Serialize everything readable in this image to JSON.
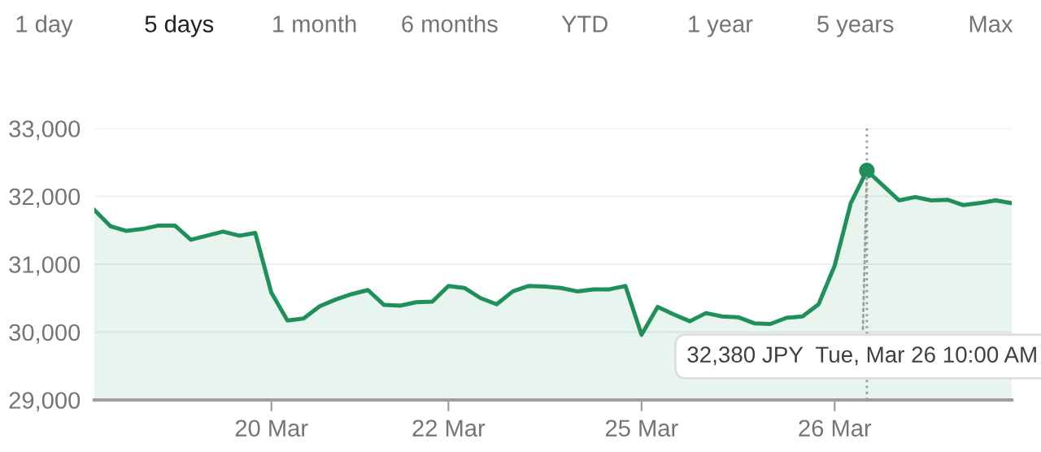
{
  "chart_data": {
    "type": "area",
    "color": "#1e9058",
    "categories": [
      null,
      null,
      null,
      null,
      null,
      null,
      null,
      null,
      null,
      null,
      null,
      "20 Mar",
      null,
      null,
      null,
      null,
      null,
      null,
      null,
      null,
      null,
      null,
      "22 Mar",
      null,
      null,
      null,
      null,
      null,
      null,
      null,
      null,
      null,
      null,
      null,
      "25 Mar",
      null,
      null,
      null,
      null,
      null,
      null,
      null,
      null,
      null,
      null,
      null,
      "26 Mar",
      null,
      null,
      null,
      null,
      null,
      null,
      null,
      null,
      null,
      null,
      null
    ],
    "values": [
      31800,
      31560,
      31490,
      31520,
      31570,
      31570,
      31360,
      31420,
      31480,
      31420,
      31460,
      30580,
      30170,
      30200,
      30380,
      30480,
      30560,
      30620,
      30400,
      30390,
      30440,
      30450,
      30680,
      30650,
      30500,
      30410,
      30600,
      30680,
      30670,
      30650,
      30600,
      30630,
      30630,
      30680,
      29960,
      30370,
      30260,
      30160,
      30280,
      30230,
      30220,
      30130,
      30120,
      30210,
      30230,
      30410,
      30980,
      31900,
      32380,
      32160,
      31940,
      31990,
      31940,
      31950,
      31870,
      31900,
      31940,
      31900
    ],
    "ylim": [
      29000,
      33000
    ],
    "yticks": [
      {
        "value": 29000,
        "label": "29,000"
      },
      {
        "value": 30000,
        "label": "30,000"
      },
      {
        "value": 31000,
        "label": "31,000"
      },
      {
        "value": 32000,
        "label": "32,000"
      },
      {
        "value": 33000,
        "label": "33,000"
      }
    ],
    "grid": "y",
    "legend": false,
    "marker": "none",
    "line_style": "solid",
    "annotations": [
      "1 day",
      "5 days",
      "1 month",
      "6 months",
      "YTD",
      "1 year",
      "5 years",
      "Max",
      {
        "text": "32,380 JPY  Tue, Mar 26 10:00 AM",
        "y": 32380
      }
    ]
  }
}
